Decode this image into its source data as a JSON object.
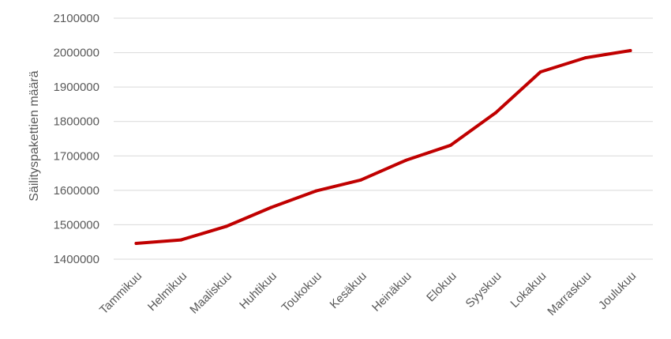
{
  "chart_data": {
    "type": "line",
    "title": "",
    "xlabel": "",
    "ylabel": "Säilityspakettien määrä",
    "categories": [
      "Tammikuu",
      "Helmikuu",
      "Maaliskuu",
      "Huhtikuu",
      "Toukokuu",
      "Kesäkuu",
      "Heinäkuu",
      "Elokuu",
      "Syyskuu",
      "Lokakuu",
      "Marraskuu",
      "Joulukuu"
    ],
    "series": [
      {
        "values": [
          1446000,
          1456000,
          1495000,
          1550000,
          1598000,
          1630000,
          1687000,
          1731000,
          1825000,
          1944000,
          1985000,
          2006000
        ],
        "color": "#c00000"
      }
    ],
    "ylim": [
      1400000,
      2100000
    ],
    "yticks": [
      "1400000",
      "1500000",
      "1600000",
      "1700000",
      "1800000",
      "1900000",
      "2000000",
      "2100000"
    ],
    "grid": true,
    "legend": "none"
  }
}
